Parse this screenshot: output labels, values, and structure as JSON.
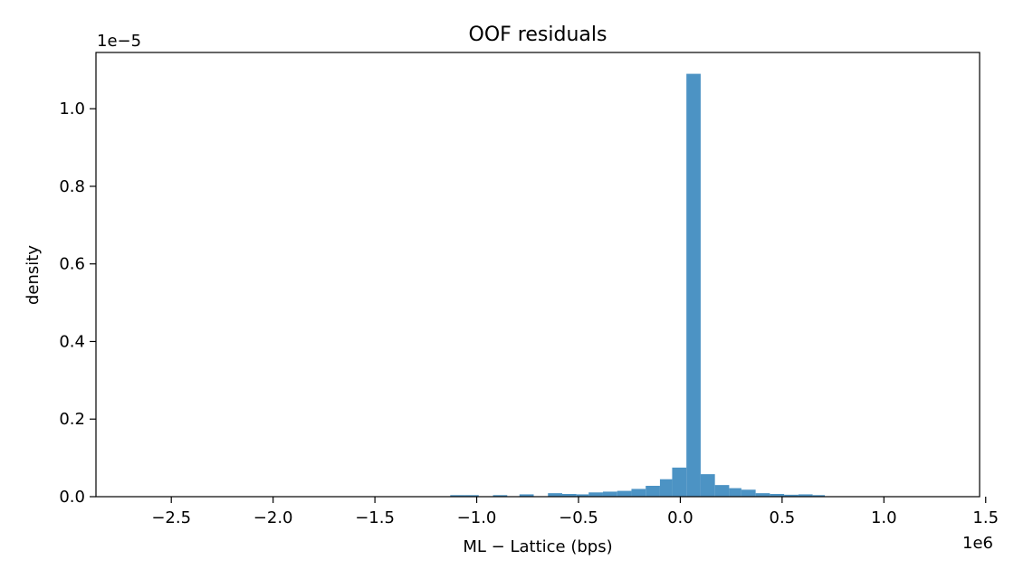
{
  "chart_data": {
    "type": "bar",
    "title": "OOF residuals",
    "xlabel": "ML − Lattice (bps)",
    "ylabel": "density",
    "x_offset_label": "1e6",
    "y_offset_label": "1e−5",
    "xlim": [
      -2.87,
      1.47
    ],
    "ylim": [
      0,
      1.145
    ],
    "grid": false,
    "x_ticks": [
      {
        "value": -2.5,
        "label": "−2.5"
      },
      {
        "value": -2.0,
        "label": "−2.0"
      },
      {
        "value": -1.5,
        "label": "−1.5"
      },
      {
        "value": -1.0,
        "label": "−1.0"
      },
      {
        "value": -0.5,
        "label": "−0.5"
      },
      {
        "value": 0.0,
        "label": "0.0"
      },
      {
        "value": 0.5,
        "label": "0.5"
      },
      {
        "value": 1.0,
        "label": "1.0"
      },
      {
        "value": 1.5,
        "label": "1.5"
      }
    ],
    "y_ticks": [
      {
        "value": 0.0,
        "label": "0.0"
      },
      {
        "value": 0.2,
        "label": "0.2"
      },
      {
        "value": 0.4,
        "label": "0.4"
      },
      {
        "value": 0.6,
        "label": "0.6"
      },
      {
        "value": 0.8,
        "label": "0.8"
      },
      {
        "value": 1.0,
        "label": "1.0"
      }
    ],
    "bar_color": "#4c93c4",
    "bins": [
      {
        "x0": -1.13,
        "x1": -1.06,
        "value": 0.004
      },
      {
        "x0": -1.06,
        "x1": -0.99,
        "value": 0.004
      },
      {
        "x0": -0.92,
        "x1": -0.85,
        "value": 0.004
      },
      {
        "x0": -0.79,
        "x1": -0.72,
        "value": 0.006
      },
      {
        "x0": -0.65,
        "x1": -0.58,
        "value": 0.009
      },
      {
        "x0": -0.58,
        "x1": -0.51,
        "value": 0.007
      },
      {
        "x0": -0.51,
        "x1": -0.45,
        "value": 0.006
      },
      {
        "x0": -0.45,
        "x1": -0.38,
        "value": 0.011
      },
      {
        "x0": -0.38,
        "x1": -0.31,
        "value": 0.013
      },
      {
        "x0": -0.31,
        "x1": -0.24,
        "value": 0.015
      },
      {
        "x0": -0.24,
        "x1": -0.17,
        "value": 0.02
      },
      {
        "x0": -0.17,
        "x1": -0.1,
        "value": 0.028
      },
      {
        "x0": -0.1,
        "x1": -0.04,
        "value": 0.045
      },
      {
        "x0": -0.04,
        "x1": 0.03,
        "value": 0.075
      },
      {
        "x0": 0.03,
        "x1": 0.1,
        "value": 1.09
      },
      {
        "x0": 0.1,
        "x1": 0.17,
        "value": 0.058
      },
      {
        "x0": 0.17,
        "x1": 0.24,
        "value": 0.03
      },
      {
        "x0": 0.24,
        "x1": 0.3,
        "value": 0.022
      },
      {
        "x0": 0.3,
        "x1": 0.37,
        "value": 0.018
      },
      {
        "x0": 0.37,
        "x1": 0.44,
        "value": 0.009
      },
      {
        "x0": 0.44,
        "x1": 0.51,
        "value": 0.007
      },
      {
        "x0": 0.51,
        "x1": 0.58,
        "value": 0.005
      },
      {
        "x0": 0.58,
        "x1": 0.65,
        "value": 0.006
      },
      {
        "x0": 0.65,
        "x1": 0.71,
        "value": 0.004
      }
    ]
  }
}
